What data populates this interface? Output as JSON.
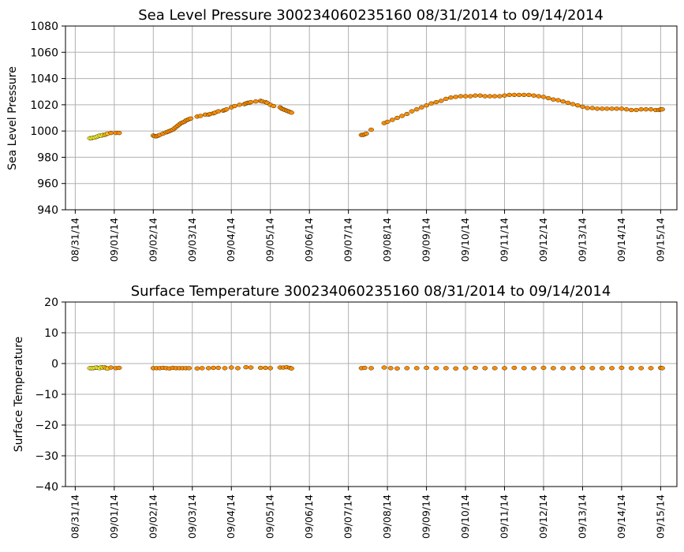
{
  "chart_data": [
    {
      "type": "scatter",
      "title": "Sea Level Pressure 300234060235160  08/31/2014 to 09/14/2014",
      "ylabel": "Sea Level Pressure",
      "xlabel": "",
      "ylim": [
        940,
        1080
      ],
      "yticks": [
        940,
        960,
        980,
        1000,
        1020,
        1040,
        1060,
        1080
      ],
      "xlim": [
        "08/30/14 18:00",
        "09/15/14 10:00"
      ],
      "xticks": [
        "08/31/14",
        "09/01/14",
        "09/02/14",
        "09/03/14",
        "09/04/14",
        "09/05/14",
        "09/06/14",
        "09/07/14",
        "09/08/14",
        "09/09/14",
        "09/10/14",
        "09/11/14",
        "09/12/14",
        "09/13/14",
        "09/14/14",
        "09/15/14"
      ],
      "grid": true,
      "point_colors": {
        "early": "#ffff33",
        "late": "#ff8c00"
      },
      "series": [
        {
          "x": [
            "08/31/14 09:00",
            "08/31/14 10:00",
            "08/31/14 11:00",
            "08/31/14 12:00",
            "08/31/14 13:00",
            "08/31/14 14:00",
            "08/31/14 15:00",
            "08/31/14 16:00",
            "08/31/14 17:00",
            "08/31/14 18:00",
            "08/31/14 19:00",
            "08/31/14 20:00",
            "08/31/14 22:00",
            "09/01/14 01:00",
            "09/01/14 03:00"
          ],
          "y": [
            994.5,
            994.5,
            995,
            995,
            995.5,
            996,
            996.5,
            996.5,
            997,
            997,
            997.5,
            998,
            998.5,
            998.5,
            998.5
          ]
        },
        {
          "x": [
            "09/02/14 00:00",
            "09/02/14 01:00",
            "09/02/14 02:00",
            "09/02/14 03:00",
            "09/02/14 04:00",
            "09/02/14 06:00",
            "09/02/14 08:00",
            "09/02/14 09:00",
            "09/02/14 10:00",
            "09/02/14 11:00",
            "09/02/14 12:00",
            "09/02/14 13:00",
            "09/02/14 14:00",
            "09/02/14 15:00",
            "09/02/14 16:00",
            "09/02/14 17:00",
            "09/02/14 18:00",
            "09/02/14 19:00",
            "09/02/14 20:00",
            "09/02/14 21:00",
            "09/02/14 22:00",
            "09/02/14 23:00",
            "09/03/14 03:00",
            "09/03/14 05:00",
            "09/03/14 08:00",
            "09/03/14 10:00",
            "09/03/14 11:00",
            "09/03/14 13:00",
            "09/03/14 14:00",
            "09/03/14 16:00",
            "09/03/14 19:00",
            "09/03/14 20:00",
            "09/03/14 21:00",
            "09/04/14 00:00",
            "09/04/14 02:00",
            "09/04/14 05:00",
            "09/04/14 08:00",
            "09/04/14 09:00",
            "09/04/14 10:00",
            "09/04/14 11:00",
            "09/04/14 12:00",
            "09/04/14 15:00",
            "09/04/14 18:00",
            "09/04/14 19:00",
            "09/04/14 21:00",
            "09/04/14 22:00",
            "09/05/14 00:00",
            "09/05/14 02:00",
            "09/05/14 06:00",
            "09/05/14 07:00",
            "09/05/14 08:00",
            "09/05/14 09:00",
            "09/05/14 10:00",
            "09/05/14 11:00",
            "09/05/14 12:00",
            "09/05/14 13:00"
          ],
          "y": [
            996.5,
            996,
            996,
            996.5,
            997,
            998,
            999,
            999.5,
            1000,
            1000.5,
            1001,
            1002,
            1003,
            1004,
            1005,
            1006,
            1006.5,
            1007,
            1008,
            1008.5,
            1009,
            1009.5,
            1011,
            1011.5,
            1012.5,
            1012.5,
            1013,
            1013.5,
            1014,
            1015,
            1015.5,
            1016,
            1016.5,
            1018,
            1019,
            1020,
            1020.5,
            1021,
            1021.5,
            1021.5,
            1022,
            1022.5,
            1023,
            1022.5,
            1022,
            1021.5,
            1020,
            1019,
            1018,
            1017,
            1016.5,
            1016,
            1015.5,
            1015,
            1014.5,
            1014
          ]
        },
        {
          "x": [
            "09/07/14 08:00",
            "09/07/14 09:00",
            "09/07/14 10:00",
            "09/07/14 11:00",
            "09/07/14 14:00",
            "09/07/14 22:00",
            "09/08/14 00:00",
            "09/08/14 03:00",
            "09/08/14 06:00",
            "09/08/14 09:00",
            "09/08/14 12:00",
            "09/08/14 15:00",
            "09/08/14 18:00",
            "09/08/14 21:00",
            "09/09/14 00:00",
            "09/09/14 03:00",
            "09/09/14 06:00",
            "09/09/14 09:00",
            "09/09/14 12:00",
            "09/09/14 15:00",
            "09/09/14 18:00",
            "09/09/14 21:00",
            "09/10/14 00:00",
            "09/10/14 03:00",
            "09/10/14 06:00",
            "09/10/14 09:00",
            "09/10/14 12:00",
            "09/10/14 15:00",
            "09/10/14 18:00",
            "09/10/14 21:00",
            "09/11/14 00:00",
            "09/11/14 03:00",
            "09/11/14 06:00",
            "09/11/14 09:00",
            "09/11/14 12:00",
            "09/11/14 15:00",
            "09/11/14 18:00",
            "09/11/14 21:00",
            "09/12/14 00:00",
            "09/12/14 03:00",
            "09/12/14 06:00",
            "09/12/14 09:00",
            "09/12/14 12:00",
            "09/12/14 15:00",
            "09/12/14 18:00",
            "09/12/14 21:00",
            "09/13/14 00:00",
            "09/13/14 03:00",
            "09/13/14 06:00",
            "09/13/14 09:00",
            "09/13/14 12:00",
            "09/13/14 15:00",
            "09/13/14 18:00",
            "09/13/14 21:00",
            "09/14/14 00:00",
            "09/14/14 03:00",
            "09/14/14 06:00",
            "09/14/14 09:00",
            "09/14/14 12:00",
            "09/14/14 15:00",
            "09/14/14 18:00",
            "09/14/14 21:00",
            "09/14/14 23:00",
            "09/15/14 00:00",
            "09/15/14 01:00"
          ],
          "y": [
            997,
            997,
            997.5,
            998,
            1001,
            1006,
            1007,
            1008.5,
            1010,
            1011.5,
            1013,
            1015,
            1016.5,
            1018,
            1019.5,
            1021,
            1022,
            1023,
            1024.5,
            1025.5,
            1026,
            1026.5,
            1026.5,
            1026.5,
            1027,
            1027,
            1026.5,
            1026.5,
            1026.5,
            1026.5,
            1027,
            1027.5,
            1027.5,
            1027.5,
            1027.5,
            1027.5,
            1027,
            1026.5,
            1026,
            1025,
            1024,
            1023.5,
            1022.5,
            1021.5,
            1020.5,
            1019.5,
            1018.5,
            1017.5,
            1017.5,
            1017,
            1017,
            1017,
            1017,
            1017,
            1017,
            1016.5,
            1016,
            1016,
            1016.5,
            1016.5,
            1016.5,
            1016,
            1016,
            1016.5,
            1016.5
          ]
        }
      ]
    },
    {
      "type": "scatter",
      "title": "Surface Temperature 300234060235160  08/31/2014 to 09/14/2014",
      "ylabel": "Surface Temperature",
      "xlabel": "",
      "ylim": [
        -40,
        20
      ],
      "yticks": [
        -40,
        -30,
        -20,
        -10,
        0,
        10,
        20
      ],
      "xlim": [
        "08/30/14 18:00",
        "09/15/14 10:00"
      ],
      "xticks": [
        "08/31/14",
        "09/01/14",
        "09/02/14",
        "09/03/14",
        "09/04/14",
        "09/05/14",
        "09/06/14",
        "09/07/14",
        "09/08/14",
        "09/09/14",
        "09/10/14",
        "09/11/14",
        "09/12/14",
        "09/13/14",
        "09/14/14",
        "09/15/14"
      ],
      "grid": true,
      "point_colors": {
        "early": "#ffff33",
        "late": "#ff8c00"
      },
      "series": [
        {
          "x": [
            "08/31/14 09:00",
            "08/31/14 10:00",
            "08/31/14 11:00",
            "08/31/14 12:00",
            "08/31/14 13:00",
            "08/31/14 14:00",
            "08/31/14 15:00",
            "08/31/14 16:00",
            "08/31/14 17:00",
            "08/31/14 18:00",
            "08/31/14 19:00",
            "08/31/14 20:00",
            "08/31/14 22:00",
            "09/01/14 01:00",
            "09/01/14 03:00"
          ],
          "y": [
            -1.5,
            -1.5,
            -1.5,
            -1.4,
            -1.3,
            -1.4,
            -1.5,
            -1.2,
            -1.3,
            -1.2,
            -1.5,
            -1.6,
            -1.3,
            -1.5,
            -1.4
          ]
        },
        {
          "x": [
            "09/02/14 00:00",
            "09/02/14 02:00",
            "09/02/14 04:00",
            "09/02/14 06:00",
            "09/02/14 08:00",
            "09/02/14 10:00",
            "09/02/14 12:00",
            "09/02/14 14:00",
            "09/02/14 16:00",
            "09/02/14 18:00",
            "09/02/14 20:00",
            "09/02/14 22:00",
            "09/03/14 03:00",
            "09/03/14 06:00",
            "09/03/14 10:00",
            "09/03/14 13:00",
            "09/03/14 16:00",
            "09/03/14 20:00",
            "09/04/14 00:00",
            "09/04/14 04:00",
            "09/04/14 09:00",
            "09/04/14 12:00",
            "09/04/14 18:00",
            "09/04/14 21:00",
            "09/05/14 00:00",
            "09/05/14 06:00",
            "09/05/14 08:00",
            "09/05/14 10:00",
            "09/05/14 12:00",
            "09/05/14 13:00"
          ],
          "y": [
            -1.5,
            -1.5,
            -1.5,
            -1.4,
            -1.5,
            -1.6,
            -1.4,
            -1.5,
            -1.5,
            -1.5,
            -1.5,
            -1.5,
            -1.6,
            -1.5,
            -1.5,
            -1.4,
            -1.4,
            -1.5,
            -1.3,
            -1.5,
            -1.2,
            -1.3,
            -1.4,
            -1.4,
            -1.5,
            -1.3,
            -1.3,
            -1.2,
            -1.4,
            -1.6
          ]
        },
        {
          "x": [
            "09/07/14 08:00",
            "09/07/14 10:00",
            "09/07/14 14:00",
            "09/07/14 22:00",
            "09/08/14 02:00",
            "09/08/14 06:00",
            "09/08/14 12:00",
            "09/08/14 18:00",
            "09/09/14 00:00",
            "09/09/14 06:00",
            "09/09/14 12:00",
            "09/09/14 18:00",
            "09/10/14 00:00",
            "09/10/14 06:00",
            "09/10/14 12:00",
            "09/10/14 18:00",
            "09/11/14 00:00",
            "09/11/14 06:00",
            "09/11/14 12:00",
            "09/11/14 18:00",
            "09/12/14 00:00",
            "09/12/14 06:00",
            "09/12/14 12:00",
            "09/12/14 18:00",
            "09/13/14 00:00",
            "09/13/14 06:00",
            "09/13/14 12:00",
            "09/13/14 18:00",
            "09/14/14 00:00",
            "09/14/14 06:00",
            "09/14/14 12:00",
            "09/14/14 18:00",
            "09/15/14 00:00",
            "09/15/14 01:00"
          ],
          "y": [
            -1.5,
            -1.4,
            -1.5,
            -1.3,
            -1.5,
            -1.6,
            -1.5,
            -1.5,
            -1.4,
            -1.5,
            -1.5,
            -1.6,
            -1.5,
            -1.4,
            -1.5,
            -1.5,
            -1.5,
            -1.4,
            -1.5,
            -1.5,
            -1.4,
            -1.5,
            -1.5,
            -1.5,
            -1.4,
            -1.5,
            -1.5,
            -1.5,
            -1.4,
            -1.5,
            -1.5,
            -1.5,
            -1.4,
            -1.5
          ]
        }
      ]
    }
  ]
}
